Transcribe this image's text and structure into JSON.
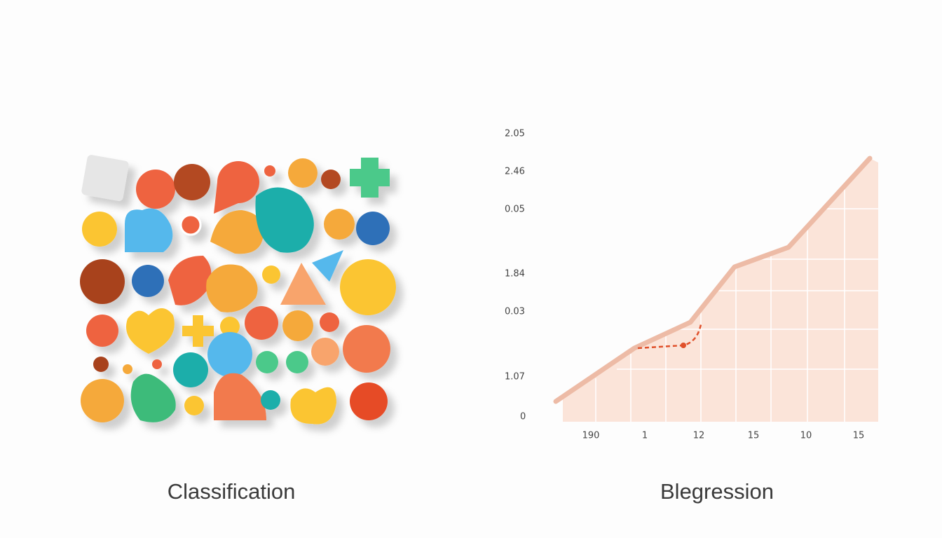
{
  "classification": {
    "caption": "Classification"
  },
  "regression": {
    "caption": "Blegression",
    "y_labels": [
      "2.05",
      "2.46",
      "0.05",
      "1.84",
      "0.03",
      "1.07",
      "0"
    ],
    "x_labels": [
      "190",
      "1",
      "12",
      "15",
      "10",
      "15"
    ]
  }
}
